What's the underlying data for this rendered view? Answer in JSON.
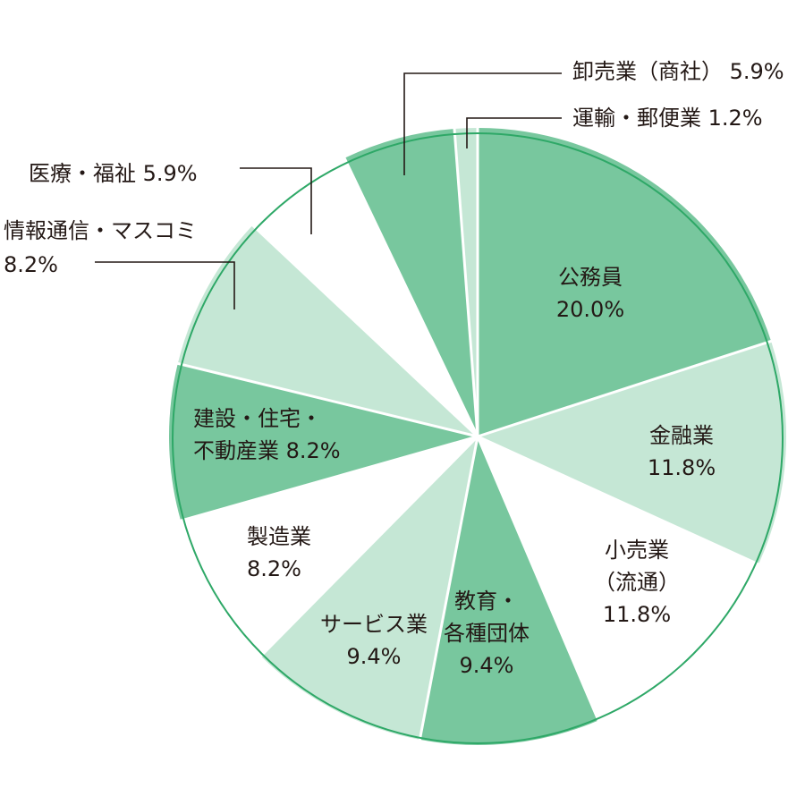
{
  "chart_data": {
    "type": "pie",
    "start_angle_deg": 0,
    "direction": "clockwise",
    "unit": "%",
    "colors": {
      "dark": "#78c79e",
      "light": "#c5e7d5",
      "white": "#ffffff",
      "outline": "#2ea867",
      "separator": "#ffffff",
      "text": "#231815"
    },
    "slices": [
      {
        "label_lines": [
          "公務員",
          "20.0%"
        ],
        "value": 20.0,
        "color": "dark"
      },
      {
        "label_lines": [
          "金融業",
          "11.8%"
        ],
        "value": 11.8,
        "color": "light"
      },
      {
        "label_lines": [
          "小売業",
          "（流通）",
          "11.8%"
        ],
        "value": 11.8,
        "color": "white"
      },
      {
        "label_lines": [
          "教育・",
          "各種団体",
          "9.4%"
        ],
        "value": 9.4,
        "color": "dark"
      },
      {
        "label_lines": [
          "サービス業",
          "9.4%"
        ],
        "value": 9.4,
        "color": "light"
      },
      {
        "label_lines": [
          "製造業",
          "8.2%"
        ],
        "value": 8.2,
        "color": "white"
      },
      {
        "label_lines": [
          "建設・住宅・",
          "不動産業 8.2%"
        ],
        "value": 8.2,
        "color": "dark"
      },
      {
        "label_lines": [
          "情報通信・マスコミ",
          "8.2%"
        ],
        "value": 8.2,
        "color": "light"
      },
      {
        "label_lines": [
          "医療・福祉 5.9%"
        ],
        "value": 5.9,
        "color": "white"
      },
      {
        "label_lines": [
          "卸売業（商社） 5.9%"
        ],
        "value": 5.9,
        "color": "dark"
      },
      {
        "label_lines": [
          "運輸・郵便業 1.2%"
        ],
        "value": 1.2,
        "color": "light"
      }
    ]
  }
}
